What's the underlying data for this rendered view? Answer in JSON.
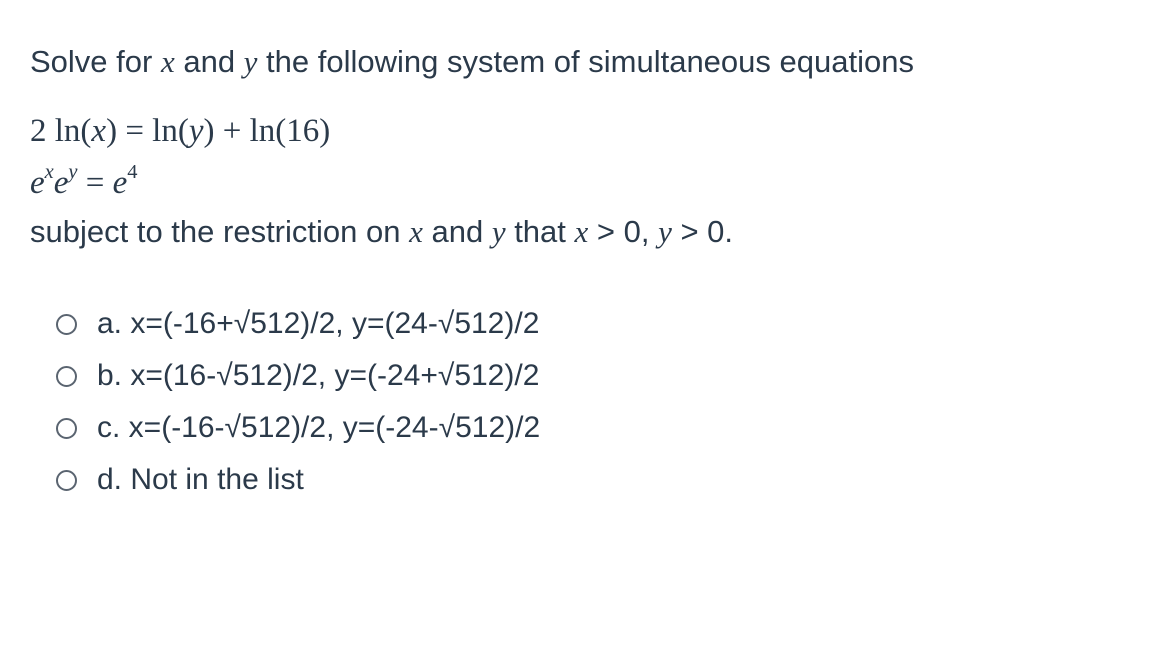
{
  "colors": {
    "background": "#ffffff",
    "text": "#2b3a4a",
    "radio_border": "#5a6470"
  },
  "typography": {
    "prompt_fontsize": 31,
    "math_fontsize": 33,
    "option_fontsize": 30,
    "body_font": "sans-serif",
    "math_font": "serif"
  },
  "prompt": {
    "prefix": "Solve for ",
    "var1": "x",
    "mid1": " and ",
    "var2": "y",
    "suffix": " the following system of simultaneous equations"
  },
  "equations": {
    "eq1": {
      "lhs_coeff": "2 ln(",
      "lhs_var": "x",
      "lhs_close": ") = ln(",
      "rhs_var": "y",
      "rhs_close": ") + ln(16)"
    },
    "eq2": {
      "e1": "e",
      "sup1": "x",
      "e2": "e",
      "sup2": "y",
      "eq": " = ",
      "e3": "e",
      "sup3": "4"
    }
  },
  "restriction": {
    "prefix": "subject to the restriction on ",
    "var1": "x",
    "mid1": " and ",
    "var2": "y",
    "mid2": "  that ",
    "cond1_var": "x",
    "cond1_op": " > 0, ",
    "cond2_var": "y",
    "cond2_op": " > 0."
  },
  "options": [
    {
      "letter": "a.",
      "text_a": " x=(-16+",
      "sqrt": "√",
      "radicand1": "512)/2, y=(24-",
      "radicand2": "512)/2"
    },
    {
      "letter": "b.",
      "text_a": " x=(16-",
      "sqrt": "√",
      "radicand1": "512)/2, y=(-24+",
      "radicand2": "512)/2"
    },
    {
      "letter": "c.",
      "text_a": " x=(-16-",
      "sqrt": "√",
      "radicand1": "512)/2, y=(-24-",
      "radicand2": "512)/2"
    },
    {
      "letter": "d.",
      "text_a": " Not in the list",
      "sqrt": "",
      "radicand1": "",
      "radicand2": ""
    }
  ]
}
